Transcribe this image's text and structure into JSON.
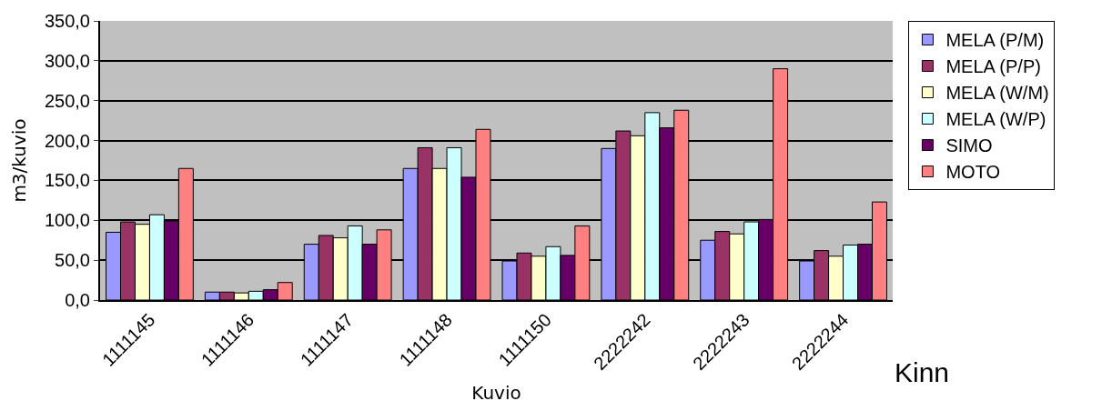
{
  "chart_data": {
    "type": "bar",
    "xlabel": "Kuvio",
    "ylabel": "m3/kuvio",
    "annotations": [
      "Kinn"
    ],
    "categories": [
      "1111145",
      "1111146",
      "1111147",
      "1111148",
      "1111150",
      "2222242",
      "2222243",
      "2222244"
    ],
    "series": [
      {
        "name": "MELA (P/M)",
        "color": "#9999ff",
        "values": [
          85,
          10,
          70,
          165,
          49,
          190,
          75,
          49
        ]
      },
      {
        "name": "MELA (P/P)",
        "color": "#993366",
        "values": [
          98,
          10,
          81,
          191,
          59,
          212,
          86,
          62
        ]
      },
      {
        "name": "MELA (W/M)",
        "color": "#ffffcc",
        "values": [
          95,
          9,
          78,
          165,
          55,
          206,
          83,
          55
        ]
      },
      {
        "name": "MELA (W/P)",
        "color": "#ccffff",
        "values": [
          107,
          11,
          93,
          191,
          67,
          235,
          98,
          69
        ]
      },
      {
        "name": "SIMO",
        "color": "#660066",
        "values": [
          99,
          13,
          70,
          154,
          56,
          216,
          101,
          70
        ]
      },
      {
        "name": "MOTO",
        "color": "#ff8080",
        "values": [
          165,
          22,
          88,
          214,
          93,
          238,
          290,
          123
        ]
      }
    ],
    "ylim": [
      0,
      350
    ],
    "yticks": [
      {
        "value": 0,
        "label": "0,0"
      },
      {
        "value": 50,
        "label": "50,0"
      },
      {
        "value": 100,
        "label": "100,0"
      },
      {
        "value": 150,
        "label": "150,0"
      },
      {
        "value": 200,
        "label": "200,0"
      },
      {
        "value": 250,
        "label": "250,0"
      },
      {
        "value": 300,
        "label": "300,0"
      },
      {
        "value": 350,
        "label": "350,0"
      }
    ],
    "grid": "y",
    "legend": "right"
  }
}
